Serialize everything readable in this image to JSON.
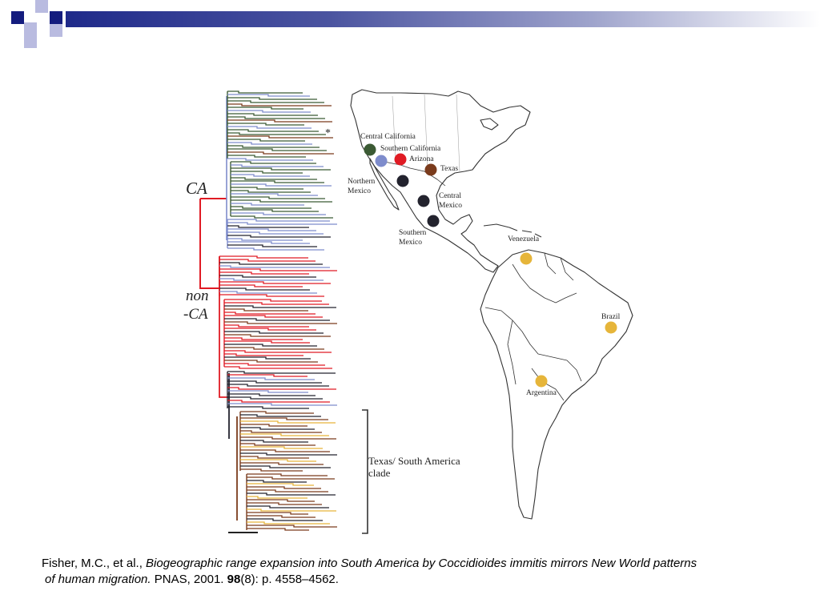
{
  "figure": {
    "clade_labels": {
      "ca": "CA",
      "non_ca_line1": "non",
      "non_ca_line2": "-CA",
      "texas_sa_line1": "Texas/ South America",
      "texas_sa_line2": "clade"
    },
    "asterisk": "*",
    "map_labels": {
      "central_california": "Central California",
      "southern_california": "Southern California",
      "arizona": "Arizona",
      "texas": "Texas",
      "northern_mexico_1": "Northern",
      "northern_mexico_2": "Mexico",
      "central_mexico_1": "Central",
      "central_mexico_2": "Mexico",
      "southern_mexico_1": "Southern",
      "southern_mexico_2": "Mexico",
      "venezuela": "Venezuela",
      "brazil": "Brazil",
      "argentina": "Argentina"
    },
    "colors": {
      "central_california": "#3b5a34",
      "southern_california": "#7e8ccc",
      "arizona": "#e01b24",
      "texas": "#7a3b1c",
      "mexico": "#23232e",
      "south_america": "#e6b53a"
    }
  },
  "citation": {
    "authors": "Fisher, M.C., et al., ",
    "title_line1": "Biogeographic range expansion into South America by Coccidioides immitis mirrors New World patterns",
    "title_line2": "of human migration.",
    "journal": " PNAS, 2001. ",
    "volume": "98",
    "pages": "(8): p. 4558–4562."
  }
}
